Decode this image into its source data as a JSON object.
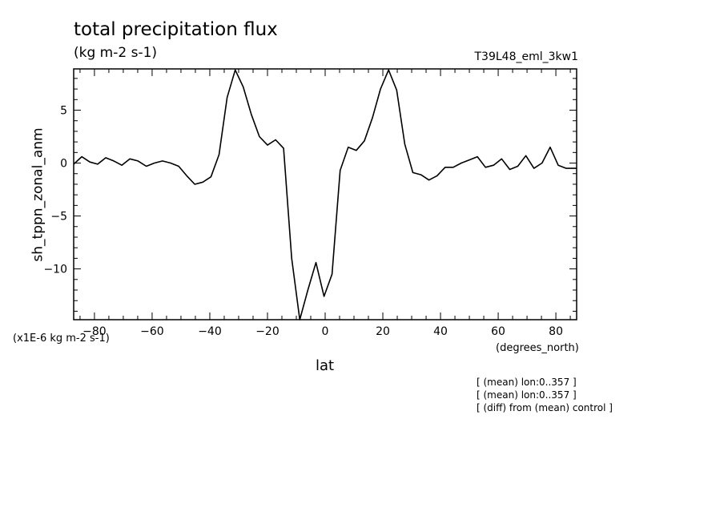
{
  "chart_data": {
    "type": "line",
    "title": "total precipitation flux",
    "subtitle": "(kg m-2 s-1)",
    "run_label": "T39L48_eml_3kw1",
    "ylabel": "sh_tppn_zonal_anm",
    "y_units": "(x1E-6 kg m-2 s-1)",
    "xlabel": "lat",
    "x_units": "(degrees_north)",
    "xlim": [
      -87.2,
      87.2
    ],
    "ylim": [
      -14.8,
      8.9
    ],
    "x_ticks": [
      -80,
      -60,
      -40,
      -20,
      0,
      20,
      40,
      60,
      80
    ],
    "y_ticks": [
      5,
      0,
      -5,
      -10
    ],
    "grid": false,
    "series": [
      {
        "x": [
          -87.2,
          -84.4,
          -81.6,
          -78.9,
          -76.1,
          -73.3,
          -70.5,
          -67.7,
          -64.9,
          -62.0,
          -59.2,
          -56.4,
          -53.6,
          -50.8,
          -48.0,
          -45.2,
          -42.4,
          -39.6,
          -36.8,
          -34.0,
          -31.2,
          -28.4,
          -25.6,
          -22.8,
          -20.0,
          -17.2,
          -14.4,
          -11.6,
          -8.8,
          -6.0,
          -3.2,
          -0.4,
          2.4,
          5.2,
          8.0,
          10.8,
          13.6,
          16.4,
          19.2,
          22.0,
          24.8,
          27.6,
          30.4,
          33.2,
          36.0,
          38.8,
          41.6,
          44.4,
          47.2,
          50.0,
          52.8,
          55.6,
          58.4,
          61.2,
          64.0,
          66.8,
          69.6,
          72.4,
          75.2,
          78.0,
          80.8,
          83.6,
          86.4,
          87.2
        ],
        "y": [
          -0.1,
          0.6,
          0.1,
          -0.1,
          0.5,
          0.2,
          -0.2,
          0.4,
          0.2,
          -0.3,
          0.0,
          0.2,
          0.0,
          -0.3,
          -1.2,
          -2.0,
          -1.8,
          -1.3,
          0.8,
          6.2,
          8.8,
          7.2,
          4.6,
          2.5,
          1.7,
          2.2,
          1.4,
          -9.0,
          -14.8,
          -12.0,
          -9.4,
          -12.6,
          -10.5,
          -0.7,
          1.5,
          1.2,
          2.1,
          4.3,
          7.0,
          8.8,
          6.9,
          1.8,
          -0.9,
          -1.1,
          -1.6,
          -1.2,
          -0.4,
          -0.4,
          0.0,
          0.3,
          0.6,
          -0.4,
          -0.2,
          0.4,
          -0.6,
          -0.3,
          0.7,
          -0.5,
          0.0,
          1.5,
          -0.2,
          -0.5,
          -0.5,
          -0.5
        ]
      }
    ],
    "notes": [
      "[ (mean) lon:0..357 ]",
      "[ (mean) lon:0..357 ]",
      "[ (diff) from (mean) control ]"
    ]
  }
}
